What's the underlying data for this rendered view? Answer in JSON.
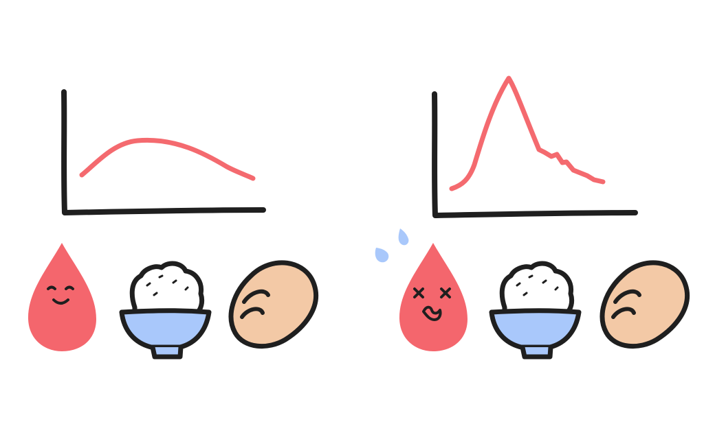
{
  "illustration": {
    "colors": {
      "ink": "#1f1f1f",
      "curve": "#f46a6f",
      "blood_drop": "#f4666d",
      "bowl": "#a9c8fb",
      "rice": "#ffffff",
      "bread": "#f3c9a6",
      "sweat": "#a9c8fb",
      "background": "#ffffff"
    },
    "panels": [
      {
        "curve_shape": "gentle-rise",
        "drop_face": "smiling",
        "items": [
          "blood-drop-icon",
          "rice-bowl-icon",
          "bread-icon"
        ]
      },
      {
        "curve_shape": "sharp-spike",
        "drop_face": "dizzy",
        "items": [
          "sweat-drops-icon",
          "blood-drop-icon",
          "rice-bowl-icon",
          "bread-icon"
        ]
      }
    ]
  }
}
